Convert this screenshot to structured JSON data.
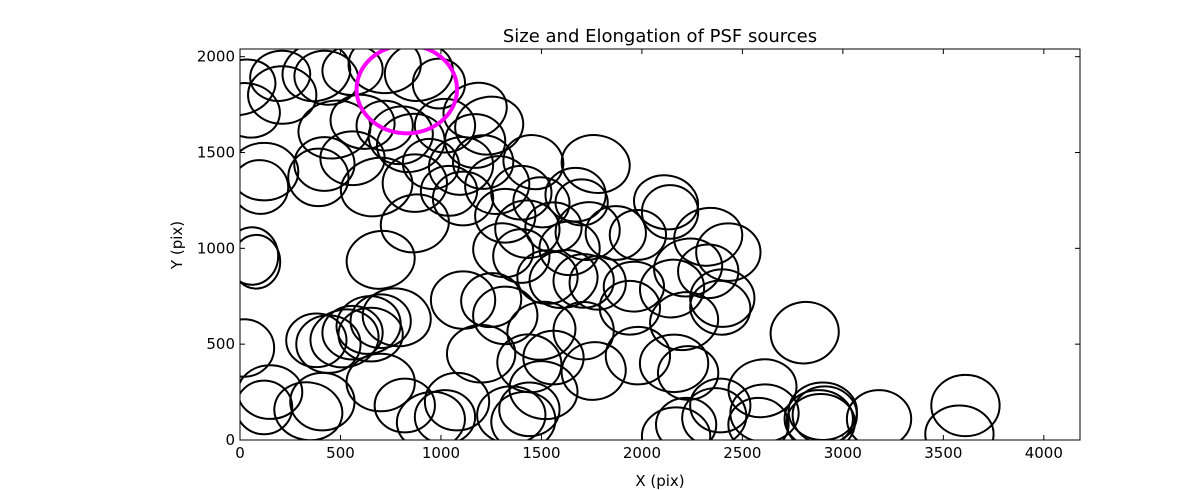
{
  "chart_data": {
    "type": "scatter",
    "marker": "ellipse",
    "title": "Size and Elongation of PSF sources",
    "xlabel": "X (pix)",
    "ylabel": "Y (pix)",
    "xlim": [
      0,
      4180
    ],
    "ylim": [
      0,
      2040
    ],
    "xticks": [
      0,
      500,
      1000,
      1500,
      2000,
      2500,
      3000,
      3500,
      4000
    ],
    "yticks": [
      0,
      500,
      1000,
      1500,
      2000
    ],
    "colors": {
      "source": "#000000",
      "highlight": "#ff00ff"
    },
    "highlight": {
      "x": 830,
      "y": 1830,
      "rx": 250,
      "ry": 230,
      "angle": 0
    },
    "sources": [
      {
        "x": 10,
        "y": 1840,
        "rx": 170,
        "ry": 140,
        "angle": 20
      },
      {
        "x": 40,
        "y": 1720,
        "rx": 160,
        "ry": 140,
        "angle": -15
      },
      {
        "x": 200,
        "y": 1900,
        "rx": 150,
        "ry": 130,
        "angle": 10
      },
      {
        "x": 210,
        "y": 1800,
        "rx": 170,
        "ry": 150,
        "angle": 0
      },
      {
        "x": 380,
        "y": 1920,
        "rx": 170,
        "ry": 150,
        "angle": 15
      },
      {
        "x": 430,
        "y": 1890,
        "rx": 160,
        "ry": 140,
        "angle": -10
      },
      {
        "x": 560,
        "y": 1930,
        "rx": 150,
        "ry": 130,
        "angle": 5
      },
      {
        "x": 720,
        "y": 1960,
        "rx": 180,
        "ry": 150,
        "angle": 0
      },
      {
        "x": 890,
        "y": 1920,
        "rx": 170,
        "ry": 150,
        "angle": 10
      },
      {
        "x": 990,
        "y": 1860,
        "rx": 130,
        "ry": 130,
        "angle": 0
      },
      {
        "x": 470,
        "y": 1620,
        "rx": 180,
        "ry": 150,
        "angle": 10
      },
      {
        "x": 610,
        "y": 1660,
        "rx": 160,
        "ry": 140,
        "angle": -10
      },
      {
        "x": 720,
        "y": 1640,
        "rx": 140,
        "ry": 130,
        "angle": 0
      },
      {
        "x": 800,
        "y": 1590,
        "rx": 160,
        "ry": 150,
        "angle": 10
      },
      {
        "x": 1020,
        "y": 1640,
        "rx": 150,
        "ry": 140,
        "angle": 0
      },
      {
        "x": 1170,
        "y": 1720,
        "rx": 160,
        "ry": 140,
        "angle": 20
      },
      {
        "x": 1240,
        "y": 1640,
        "rx": 170,
        "ry": 150,
        "angle": 10
      },
      {
        "x": 1170,
        "y": 1560,
        "rx": 150,
        "ry": 140,
        "angle": 0
      },
      {
        "x": 560,
        "y": 1470,
        "rx": 160,
        "ry": 140,
        "angle": 0
      },
      {
        "x": 850,
        "y": 1550,
        "rx": 170,
        "ry": 150,
        "angle": 15
      },
      {
        "x": 420,
        "y": 1440,
        "rx": 150,
        "ry": 140,
        "angle": 0
      },
      {
        "x": 950,
        "y": 1440,
        "rx": 140,
        "ry": 130,
        "angle": -10
      },
      {
        "x": 1100,
        "y": 1430,
        "rx": 160,
        "ry": 150,
        "angle": 10
      },
      {
        "x": 1210,
        "y": 1450,
        "rx": 150,
        "ry": 140,
        "angle": 0
      },
      {
        "x": 1460,
        "y": 1450,
        "rx": 150,
        "ry": 140,
        "angle": -15
      },
      {
        "x": 1770,
        "y": 1440,
        "rx": 170,
        "ry": 150,
        "angle": -10
      },
      {
        "x": 120,
        "y": 1400,
        "rx": 170,
        "ry": 150,
        "angle": 0
      },
      {
        "x": 390,
        "y": 1370,
        "rx": 150,
        "ry": 150,
        "angle": 0
      },
      {
        "x": 100,
        "y": 1320,
        "rx": 140,
        "ry": 140,
        "angle": -10
      },
      {
        "x": 680,
        "y": 1320,
        "rx": 180,
        "ry": 150,
        "angle": 15
      },
      {
        "x": 870,
        "y": 1340,
        "rx": 160,
        "ry": 150,
        "angle": 0
      },
      {
        "x": 1040,
        "y": 1300,
        "rx": 140,
        "ry": 130,
        "angle": 0
      },
      {
        "x": 1110,
        "y": 1260,
        "rx": 150,
        "ry": 140,
        "angle": 0
      },
      {
        "x": 1280,
        "y": 1330,
        "rx": 160,
        "ry": 150,
        "angle": 10
      },
      {
        "x": 1400,
        "y": 1290,
        "rx": 150,
        "ry": 140,
        "angle": 0
      },
      {
        "x": 1500,
        "y": 1240,
        "rx": 140,
        "ry": 130,
        "angle": -10
      },
      {
        "x": 1670,
        "y": 1280,
        "rx": 150,
        "ry": 140,
        "angle": 0
      },
      {
        "x": 1700,
        "y": 1240,
        "rx": 130,
        "ry": 120,
        "angle": 0
      },
      {
        "x": 2120,
        "y": 1240,
        "rx": 160,
        "ry": 140,
        "angle": -10
      },
      {
        "x": 2140,
        "y": 1190,
        "rx": 140,
        "ry": 140,
        "angle": 0
      },
      {
        "x": 870,
        "y": 1130,
        "rx": 170,
        "ry": 150,
        "angle": 10
      },
      {
        "x": 1320,
        "y": 1170,
        "rx": 150,
        "ry": 140,
        "angle": 0
      },
      {
        "x": 1430,
        "y": 1100,
        "rx": 160,
        "ry": 150,
        "angle": -5
      },
      {
        "x": 1560,
        "y": 1110,
        "rx": 140,
        "ry": 130,
        "angle": 0
      },
      {
        "x": 1730,
        "y": 1090,
        "rx": 160,
        "ry": 150,
        "angle": 10
      },
      {
        "x": 1870,
        "y": 1080,
        "rx": 150,
        "ry": 140,
        "angle": 0
      },
      {
        "x": 1980,
        "y": 1070,
        "rx": 140,
        "ry": 130,
        "angle": 0
      },
      {
        "x": 2330,
        "y": 1060,
        "rx": 170,
        "ry": 150,
        "angle": 10
      },
      {
        "x": 2430,
        "y": 980,
        "rx": 160,
        "ry": 150,
        "angle": 0
      },
      {
        "x": 1310,
        "y": 990,
        "rx": 150,
        "ry": 140,
        "angle": -10
      },
      {
        "x": 1400,
        "y": 960,
        "rx": 140,
        "ry": 140,
        "angle": 0
      },
      {
        "x": 1640,
        "y": 1000,
        "rx": 150,
        "ry": 140,
        "angle": 0
      },
      {
        "x": 2230,
        "y": 900,
        "rx": 170,
        "ry": 150,
        "angle": 10
      },
      {
        "x": 2330,
        "y": 880,
        "rx": 150,
        "ry": 140,
        "angle": 0
      },
      {
        "x": 60,
        "y": 960,
        "rx": 130,
        "ry": 150,
        "angle": 0
      },
      {
        "x": 80,
        "y": 930,
        "rx": 120,
        "ry": 140,
        "angle": 0
      },
      {
        "x": 700,
        "y": 940,
        "rx": 170,
        "ry": 150,
        "angle": 10
      },
      {
        "x": 1530,
        "y": 850,
        "rx": 150,
        "ry": 140,
        "angle": 0
      },
      {
        "x": 1610,
        "y": 840,
        "rx": 170,
        "ry": 150,
        "angle": 10
      },
      {
        "x": 1710,
        "y": 830,
        "rx": 150,
        "ry": 140,
        "angle": 0
      },
      {
        "x": 1780,
        "y": 820,
        "rx": 140,
        "ry": 140,
        "angle": 0
      },
      {
        "x": 1960,
        "y": 800,
        "rx": 150,
        "ry": 130,
        "angle": 0
      },
      {
        "x": 2150,
        "y": 790,
        "rx": 160,
        "ry": 150,
        "angle": 10
      },
      {
        "x": 2400,
        "y": 740,
        "rx": 160,
        "ry": 150,
        "angle": 0
      },
      {
        "x": 2390,
        "y": 690,
        "rx": 150,
        "ry": 140,
        "angle": -10
      },
      {
        "x": 1110,
        "y": 730,
        "rx": 160,
        "ry": 150,
        "angle": 0
      },
      {
        "x": 1250,
        "y": 730,
        "rx": 150,
        "ry": 140,
        "angle": 10
      },
      {
        "x": 1320,
        "y": 650,
        "rx": 160,
        "ry": 150,
        "angle": 0
      },
      {
        "x": 1940,
        "y": 690,
        "rx": 150,
        "ry": 140,
        "angle": 0
      },
      {
        "x": 2210,
        "y": 620,
        "rx": 170,
        "ry": 150,
        "angle": 10
      },
      {
        "x": 2810,
        "y": 560,
        "rx": 170,
        "ry": 160,
        "angle": 10
      },
      {
        "x": 20,
        "y": 480,
        "rx": 150,
        "ry": 150,
        "angle": 0
      },
      {
        "x": 380,
        "y": 520,
        "rx": 150,
        "ry": 140,
        "angle": 0
      },
      {
        "x": 440,
        "y": 500,
        "rx": 160,
        "ry": 150,
        "angle": 0
      },
      {
        "x": 520,
        "y": 530,
        "rx": 170,
        "ry": 150,
        "angle": 10
      },
      {
        "x": 560,
        "y": 560,
        "rx": 150,
        "ry": 140,
        "angle": 0
      },
      {
        "x": 640,
        "y": 600,
        "rx": 160,
        "ry": 150,
        "angle": 10
      },
      {
        "x": 700,
        "y": 620,
        "rx": 150,
        "ry": 140,
        "angle": 0
      },
      {
        "x": 780,
        "y": 640,
        "rx": 170,
        "ry": 150,
        "angle": -10
      },
      {
        "x": 650,
        "y": 550,
        "rx": 160,
        "ry": 140,
        "angle": 0
      },
      {
        "x": 1500,
        "y": 570,
        "rx": 170,
        "ry": 150,
        "angle": 10
      },
      {
        "x": 1710,
        "y": 570,
        "rx": 150,
        "ry": 150,
        "angle": 0
      },
      {
        "x": 1200,
        "y": 450,
        "rx": 170,
        "ry": 150,
        "angle": 0
      },
      {
        "x": 1440,
        "y": 400,
        "rx": 160,
        "ry": 150,
        "angle": -10
      },
      {
        "x": 1560,
        "y": 430,
        "rx": 150,
        "ry": 140,
        "angle": 0
      },
      {
        "x": 1760,
        "y": 360,
        "rx": 160,
        "ry": 150,
        "angle": 10
      },
      {
        "x": 1980,
        "y": 440,
        "rx": 160,
        "ry": 150,
        "angle": 0
      },
      {
        "x": 2160,
        "y": 400,
        "rx": 170,
        "ry": 150,
        "angle": 0
      },
      {
        "x": 2230,
        "y": 350,
        "rx": 150,
        "ry": 140,
        "angle": 0
      },
      {
        "x": 2600,
        "y": 270,
        "rx": 170,
        "ry": 150,
        "angle": 10
      },
      {
        "x": 150,
        "y": 250,
        "rx": 160,
        "ry": 140,
        "angle": 0
      },
      {
        "x": 120,
        "y": 170,
        "rx": 140,
        "ry": 140,
        "angle": 0
      },
      {
        "x": 340,
        "y": 150,
        "rx": 170,
        "ry": 150,
        "angle": -10
      },
      {
        "x": 410,
        "y": 200,
        "rx": 160,
        "ry": 150,
        "angle": 0
      },
      {
        "x": 700,
        "y": 300,
        "rx": 170,
        "ry": 150,
        "angle": 0
      },
      {
        "x": 820,
        "y": 180,
        "rx": 150,
        "ry": 140,
        "angle": 0
      },
      {
        "x": 950,
        "y": 100,
        "rx": 170,
        "ry": 150,
        "angle": 10
      },
      {
        "x": 1080,
        "y": 200,
        "rx": 160,
        "ry": 150,
        "angle": 0
      },
      {
        "x": 1020,
        "y": 120,
        "rx": 150,
        "ry": 140,
        "angle": 0
      },
      {
        "x": 1350,
        "y": 130,
        "rx": 170,
        "ry": 150,
        "angle": 0
      },
      {
        "x": 1410,
        "y": 100,
        "rx": 160,
        "ry": 150,
        "angle": 10
      },
      {
        "x": 1440,
        "y": 160,
        "rx": 150,
        "ry": 140,
        "angle": 0
      },
      {
        "x": 1510,
        "y": 260,
        "rx": 170,
        "ry": 150,
        "angle": -10
      },
      {
        "x": 2170,
        "y": 20,
        "rx": 170,
        "ry": 150,
        "angle": 0
      },
      {
        "x": 2220,
        "y": 80,
        "rx": 150,
        "ry": 140,
        "angle": 0
      },
      {
        "x": 2360,
        "y": 120,
        "rx": 160,
        "ry": 150,
        "angle": 10
      },
      {
        "x": 2390,
        "y": 180,
        "rx": 150,
        "ry": 140,
        "angle": 0
      },
      {
        "x": 2610,
        "y": 140,
        "rx": 170,
        "ry": 150,
        "angle": 0
      },
      {
        "x": 2580,
        "y": 80,
        "rx": 150,
        "ry": 140,
        "angle": 0
      },
      {
        "x": 2900,
        "y": 150,
        "rx": 170,
        "ry": 150,
        "angle": 0
      },
      {
        "x": 2880,
        "y": 110,
        "rx": 170,
        "ry": 150,
        "angle": 0
      },
      {
        "x": 2890,
        "y": 90,
        "rx": 170,
        "ry": 150,
        "angle": 0
      },
      {
        "x": 2910,
        "y": 130,
        "rx": 160,
        "ry": 150,
        "angle": 0
      },
      {
        "x": 3180,
        "y": 110,
        "rx": 160,
        "ry": 150,
        "angle": 0
      },
      {
        "x": 3610,
        "y": 180,
        "rx": 170,
        "ry": 160,
        "angle": 0
      },
      {
        "x": 3580,
        "y": 30,
        "rx": 170,
        "ry": 150,
        "angle": 0
      }
    ]
  }
}
